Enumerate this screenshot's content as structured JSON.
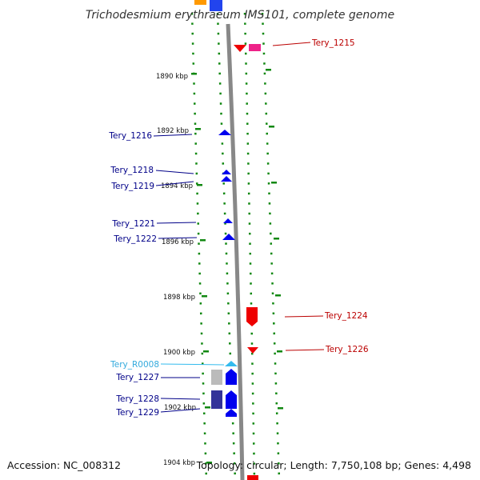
{
  "header": {
    "title": "Trichodesmium erythraeum IMS101, complete genome"
  },
  "footer": {
    "accession": "Accession: NC_008312",
    "topology": "Topology: circular; Length: 7,750,108 bp; Genes: 4,498"
  },
  "ruler": {
    "ticks": [
      "1890 kbp",
      "1892 kbp",
      "1894 kbp",
      "1896 kbp",
      "1898 kbp",
      "1900 kbp",
      "1902 kbp",
      "1904 kbp"
    ]
  },
  "colors": {
    "forward_gene": "#0000ee",
    "reverse_gene": "#ee0000",
    "rna_feature": "#33bbee",
    "tick_mark": "#118811",
    "backbone": "#888888",
    "forward_label": "#000088",
    "reverse_label": "#bb0000",
    "rna_label": "#33aadd"
  },
  "features": {
    "forward": [
      "Tery_1216",
      "Tery_1218",
      "Tery_1219",
      "Tery_1221",
      "Tery_1222",
      "Tery_1227",
      "Tery_1228",
      "Tery_1229"
    ],
    "reverse": [
      "Tery_1215",
      "Tery_1224",
      "Tery_1226"
    ],
    "rna": [
      "Tery_R0008"
    ]
  }
}
